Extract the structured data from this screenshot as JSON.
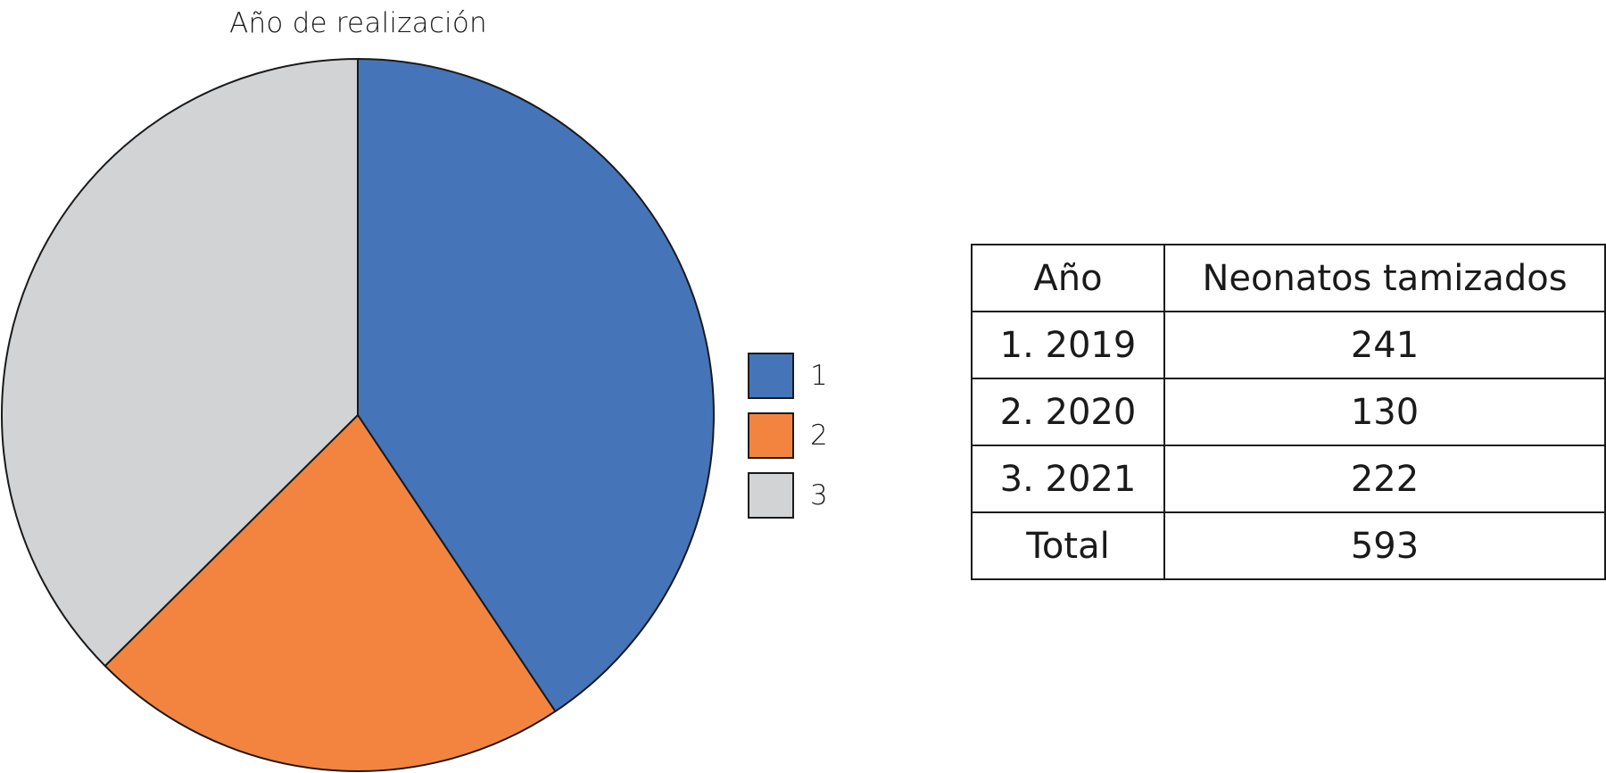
{
  "chart_data": {
    "type": "pie",
    "title": "Año de realización",
    "categories": [
      "1",
      "2",
      "3"
    ],
    "values": [
      241,
      130,
      222
    ],
    "colors": [
      "#4674b8",
      "#f28440",
      "#d2d3d5"
    ],
    "legend": {
      "position": "right",
      "entries": [
        "1",
        "2",
        "3"
      ]
    },
    "start_angle": "top",
    "direction": "clockwise"
  },
  "table": {
    "headers": [
      "Año",
      "Neonatos tamizados"
    ],
    "rows": [
      [
        "1. 2019",
        "241"
      ],
      [
        "2. 2020",
        "130"
      ],
      [
        "3. 2021",
        "222"
      ],
      [
        "Total",
        "593"
      ]
    ]
  }
}
